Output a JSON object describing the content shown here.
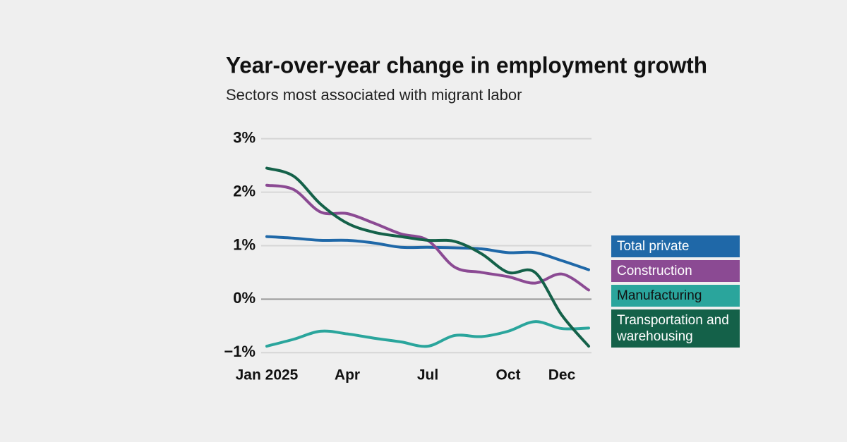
{
  "chart_data": {
    "type": "line",
    "title": "Year-over-year change in employment growth",
    "subtitle": "Sectors most associated with migrant labor",
    "categories": [
      "Jan 2025",
      null,
      null,
      "Apr",
      null,
      null,
      "Jul",
      null,
      null,
      "Oct",
      null,
      "Dec",
      null
    ],
    "series": [
      {
        "name": "Total private",
        "color": "#1f68a8",
        "values": [
          1.17,
          1.14,
          1.1,
          1.1,
          1.05,
          0.97,
          0.97,
          0.96,
          0.94,
          0.87,
          0.87,
          0.72,
          0.55
        ]
      },
      {
        "name": "Construction",
        "color": "#8b4a93",
        "values": [
          2.13,
          2.05,
          1.63,
          1.6,
          1.42,
          1.22,
          1.1,
          0.6,
          0.5,
          0.42,
          0.3,
          0.47,
          0.17
        ]
      },
      {
        "name": "Manufacturing",
        "color": "#2aa59c",
        "values": [
          -0.88,
          -0.75,
          -0.6,
          -0.65,
          -0.73,
          -0.8,
          -0.88,
          -0.68,
          -0.7,
          -0.6,
          -0.42,
          -0.55,
          -0.54
        ]
      },
      {
        "name": "Transportation and warehousing",
        "color": "#146149",
        "values": [
          2.45,
          2.3,
          1.78,
          1.42,
          1.25,
          1.17,
          1.1,
          1.08,
          0.85,
          0.5,
          0.5,
          -0.3,
          -0.88
        ]
      }
    ],
    "ylim": [
      -1.05,
      3.05
    ],
    "yticks": [
      {
        "value": 3,
        "label": "3%"
      },
      {
        "value": 2,
        "label": "2%"
      },
      {
        "value": 1,
        "label": "1%"
      },
      {
        "value": 0,
        "label": "0%"
      },
      {
        "value": -1,
        "label": "−1%"
      }
    ],
    "grid": true
  }
}
